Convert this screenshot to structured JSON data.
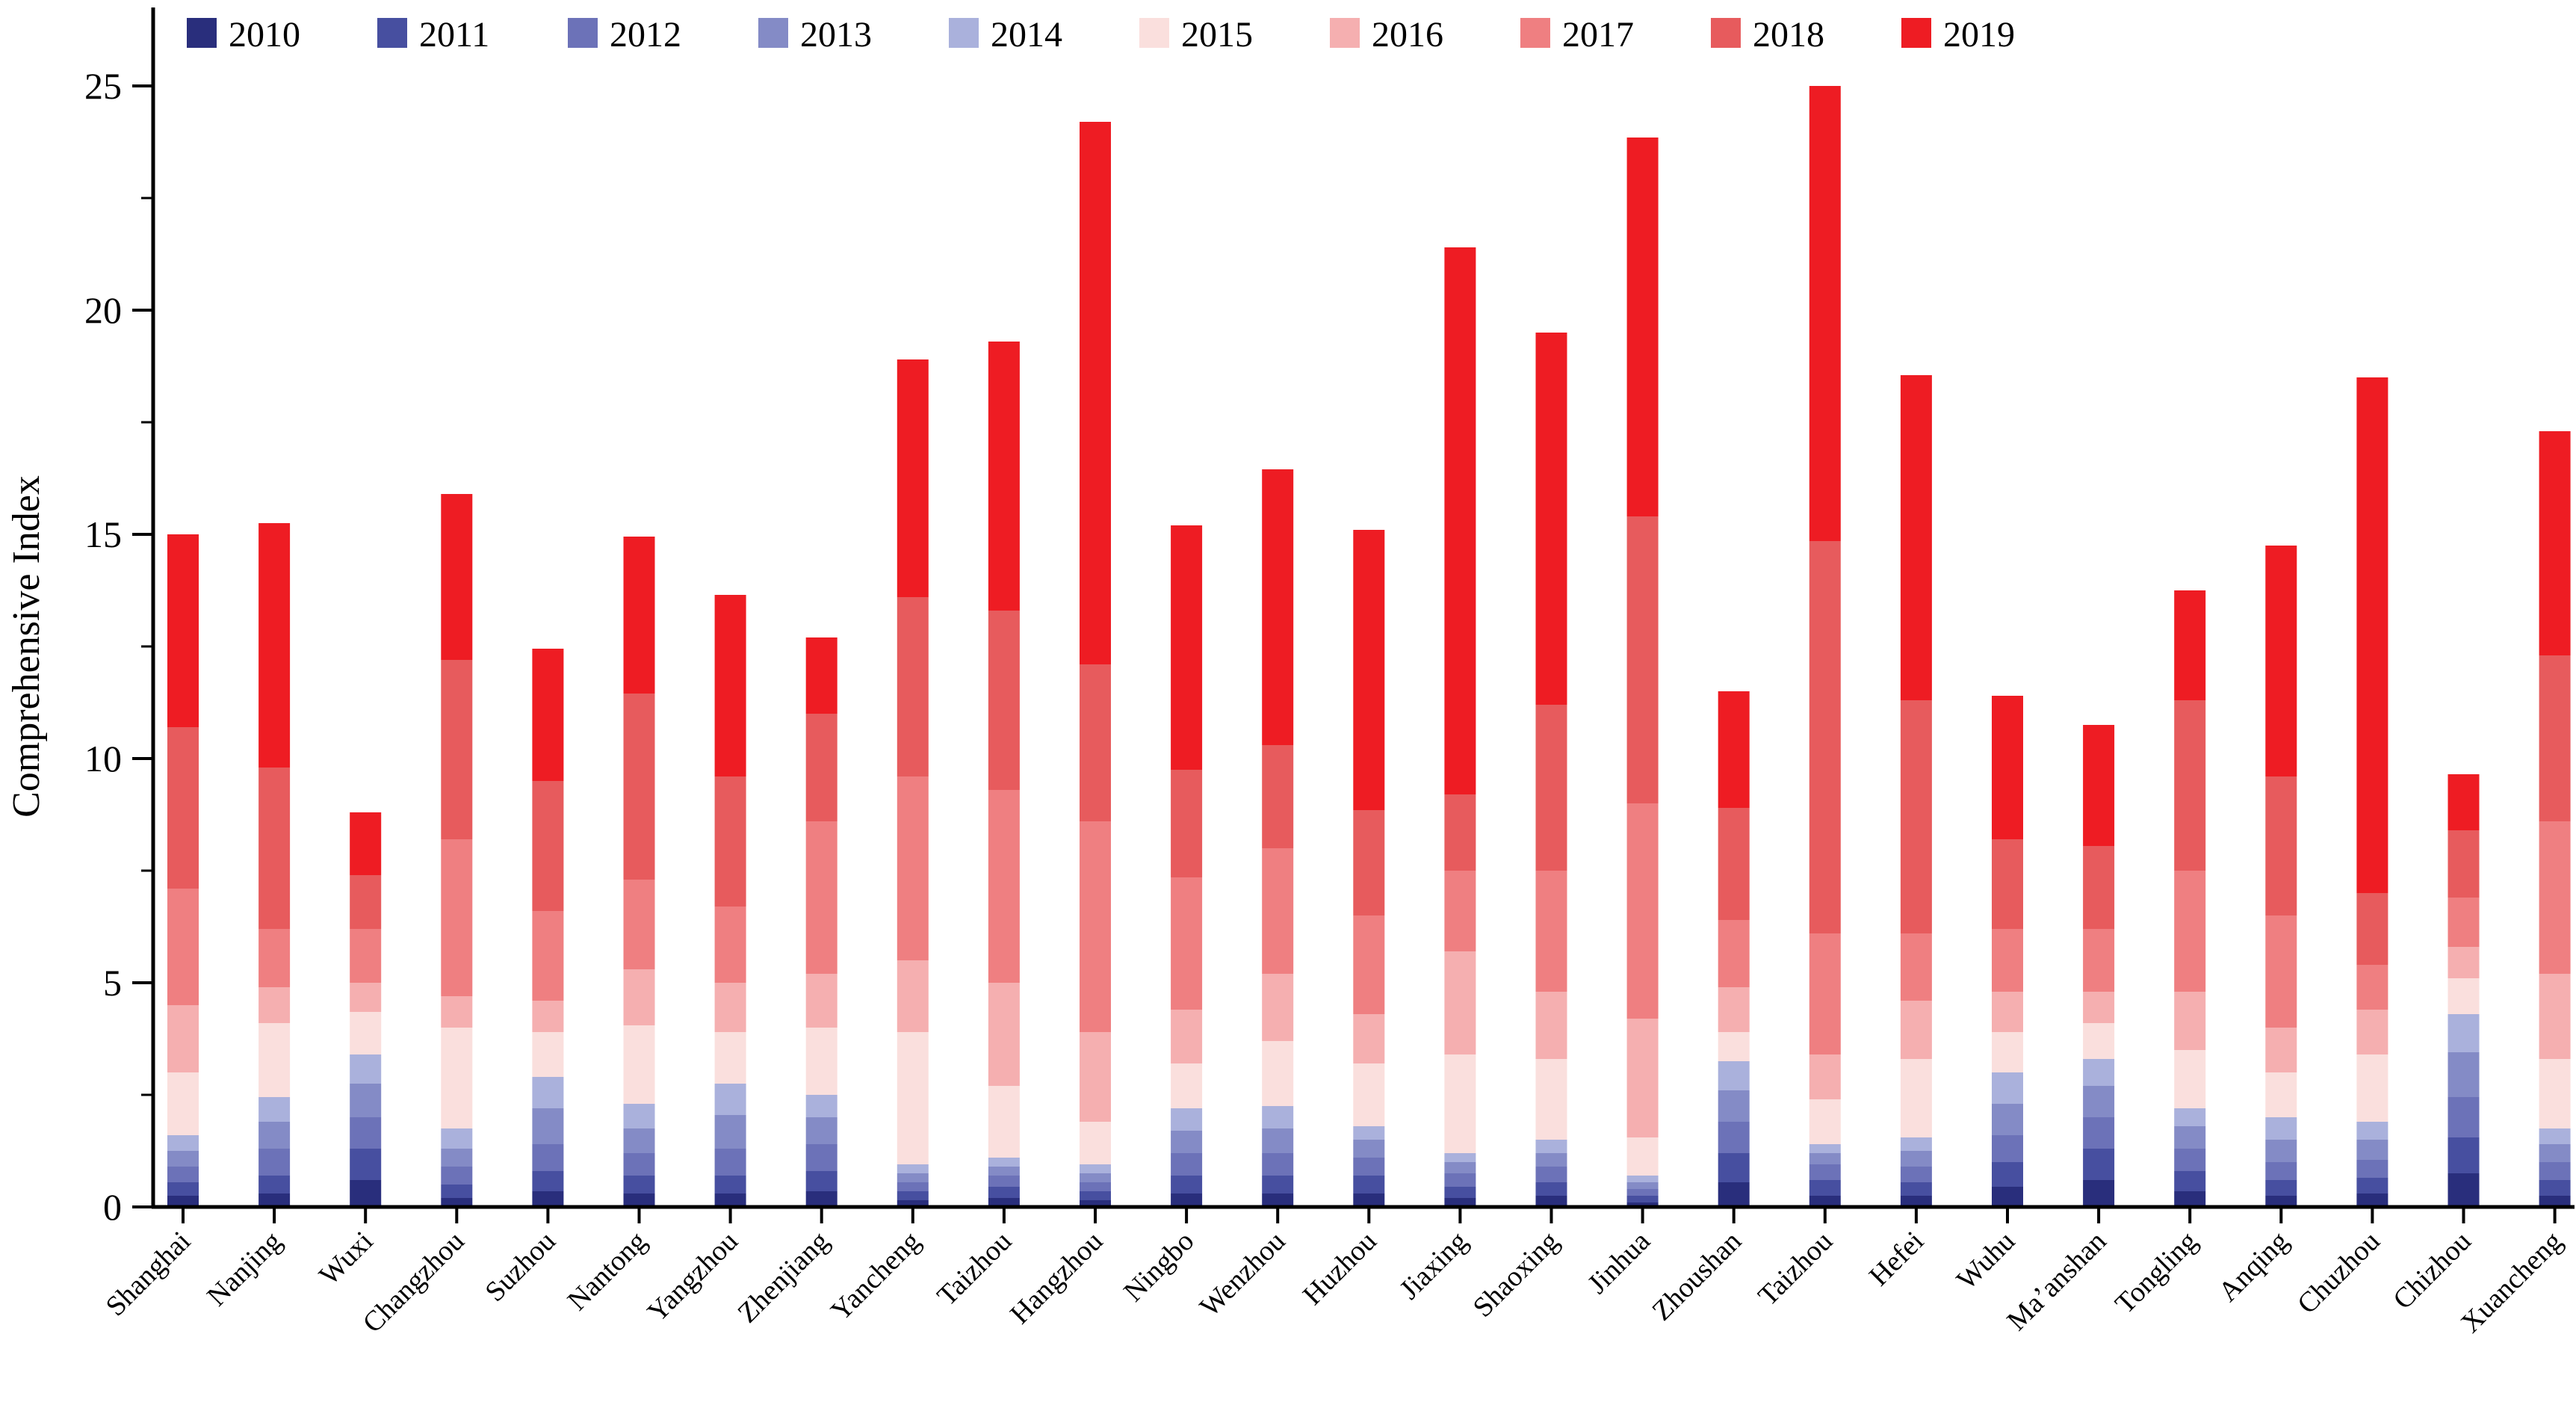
{
  "chart_data": {
    "type": "bar",
    "stacked": true,
    "title": "",
    "xlabel": "",
    "ylabel": "Comprehensive Index",
    "ylim": [
      0,
      25
    ],
    "yticks_major": [
      0,
      5,
      10,
      15,
      20,
      25
    ],
    "ytick_minor_step": 2.5,
    "grid": false,
    "legend_position": "top",
    "categories": [
      "Shanghai",
      "Nanjing",
      "Wuxi",
      "Changzhou",
      "Suzhou",
      "Nantong",
      "Yangzhou",
      "Zhenjiang",
      "Yancheng",
      "Taizhou",
      "Hangzhou",
      "Ningbo",
      "Wenzhou",
      "Huzhou",
      "Jiaxing",
      "Shaoxing",
      "Jinhua",
      "Zhoushan",
      "Taizhou",
      "Hefei",
      "Wuhu",
      "Ma’anshan",
      "Tongling",
      "Anqing",
      "Chuzhou",
      "Chizhou",
      "Xuancheng"
    ],
    "series": [
      {
        "name": "2010",
        "color": "#292E7C",
        "values": [
          0.25,
          0.3,
          0.6,
          0.2,
          0.35,
          0.3,
          0.3,
          0.35,
          0.15,
          0.2,
          0.15,
          0.3,
          0.3,
          0.3,
          0.2,
          0.25,
          0.1,
          0.55,
          0.25,
          0.25,
          0.45,
          0.6,
          0.35,
          0.25,
          0.3,
          0.75,
          0.25
        ]
      },
      {
        "name": "2011",
        "color": "#474FA0",
        "values": [
          0.3,
          0.4,
          0.7,
          0.3,
          0.45,
          0.4,
          0.4,
          0.45,
          0.2,
          0.25,
          0.2,
          0.4,
          0.4,
          0.4,
          0.25,
          0.3,
          0.15,
          0.65,
          0.35,
          0.3,
          0.55,
          0.7,
          0.45,
          0.35,
          0.35,
          0.8,
          0.35
        ]
      },
      {
        "name": "2012",
        "color": "#6C72B8",
        "values": [
          0.35,
          0.6,
          0.7,
          0.4,
          0.6,
          0.5,
          0.6,
          0.6,
          0.2,
          0.25,
          0.2,
          0.5,
          0.5,
          0.4,
          0.3,
          0.35,
          0.15,
          0.7,
          0.35,
          0.35,
          0.6,
          0.7,
          0.5,
          0.4,
          0.4,
          0.9,
          0.4
        ]
      },
      {
        "name": "2013",
        "color": "#848BC6",
        "values": [
          0.35,
          0.6,
          0.75,
          0.4,
          0.8,
          0.55,
          0.75,
          0.6,
          0.2,
          0.2,
          0.2,
          0.5,
          0.55,
          0.4,
          0.25,
          0.3,
          0.15,
          0.7,
          0.25,
          0.35,
          0.7,
          0.7,
          0.5,
          0.5,
          0.45,
          1.0,
          0.4
        ]
      },
      {
        "name": "2014",
        "color": "#AAB1DC",
        "values": [
          0.35,
          0.55,
          0.65,
          0.45,
          0.7,
          0.55,
          0.7,
          0.5,
          0.2,
          0.2,
          0.2,
          0.5,
          0.5,
          0.3,
          0.2,
          0.3,
          0.15,
          0.65,
          0.2,
          0.3,
          0.7,
          0.6,
          0.4,
          0.5,
          0.4,
          0.85,
          0.35
        ]
      },
      {
        "name": "2015",
        "color": "#FADFDD",
        "values": [
          1.4,
          1.65,
          0.95,
          2.25,
          1.0,
          1.75,
          1.15,
          1.5,
          2.95,
          1.6,
          0.95,
          1.0,
          1.45,
          1.4,
          2.2,
          1.8,
          0.85,
          0.65,
          1.0,
          1.75,
          0.9,
          0.8,
          1.3,
          1.0,
          1.5,
          0.8,
          1.55
        ]
      },
      {
        "name": "2016",
        "color": "#F5AFB0",
        "values": [
          1.5,
          0.8,
          0.65,
          0.7,
          0.7,
          1.25,
          1.1,
          1.2,
          1.6,
          2.3,
          2.0,
          1.2,
          1.5,
          1.1,
          2.3,
          1.5,
          2.65,
          1.0,
          1.0,
          1.3,
          0.9,
          0.7,
          1.3,
          1.0,
          1.0,
          0.7,
          1.9
        ]
      },
      {
        "name": "2017",
        "color": "#EF7F81",
        "values": [
          2.6,
          1.3,
          1.2,
          3.5,
          2.0,
          2.0,
          1.7,
          3.4,
          4.1,
          4.3,
          4.7,
          2.95,
          2.8,
          2.2,
          1.8,
          2.7,
          4.8,
          1.5,
          2.7,
          1.5,
          1.4,
          1.4,
          2.7,
          2.5,
          1.0,
          1.1,
          3.4
        ]
      },
      {
        "name": "2018",
        "color": "#E75B5D",
        "values": [
          3.6,
          3.6,
          1.2,
          4.0,
          2.9,
          4.15,
          2.9,
          2.4,
          4.0,
          4.0,
          3.5,
          2.4,
          2.3,
          2.35,
          1.7,
          3.7,
          6.4,
          2.5,
          8.75,
          5.2,
          2.0,
          1.85,
          3.8,
          3.1,
          1.6,
          1.5,
          3.7
        ]
      },
      {
        "name": "2019",
        "color": "#EE1C23",
        "values": [
          4.3,
          5.45,
          1.4,
          3.7,
          2.95,
          3.5,
          4.05,
          1.7,
          5.3,
          6.0,
          12.1,
          5.45,
          6.15,
          6.25,
          12.2,
          8.3,
          8.45,
          2.6,
          10.15,
          7.25,
          3.2,
          2.7,
          2.45,
          5.15,
          11.5,
          1.25,
          5.0
        ]
      }
    ]
  },
  "style": {
    "axis_color": "#000000",
    "background": "#ffffff"
  }
}
